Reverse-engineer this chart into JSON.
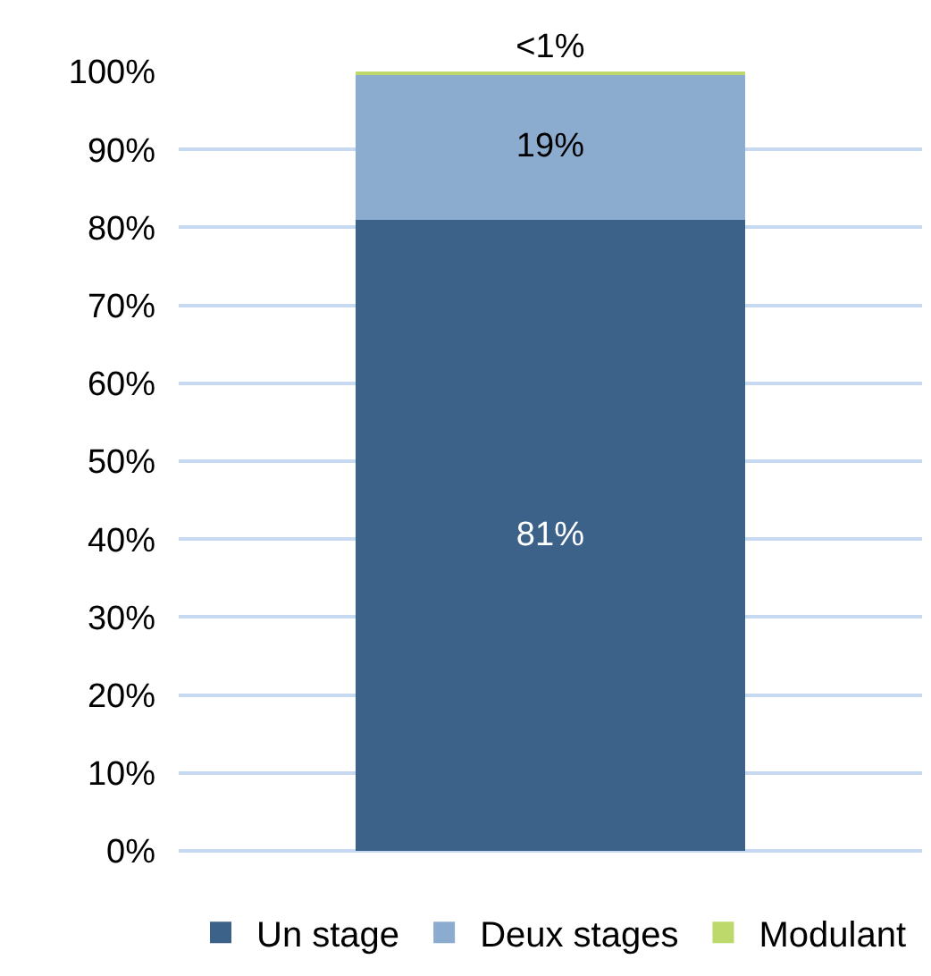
{
  "chart_data": {
    "type": "bar",
    "stacked": true,
    "categories": [
      null
    ],
    "series": [
      {
        "name": "Un stage",
        "color": "#3d6289",
        "values": [
          81
        ],
        "value_labels": [
          "81%"
        ]
      },
      {
        "name": "Deux stages",
        "color": "#8caccf",
        "values": [
          18.7
        ],
        "value_labels": [
          "19%"
        ]
      },
      {
        "name": "Modulant",
        "color": "#bdd96b",
        "values": [
          0.3
        ],
        "value_labels": [
          "<1%"
        ]
      }
    ],
    "ylim": [
      0,
      100
    ],
    "yticks": [
      {
        "value": 0,
        "label": "0%"
      },
      {
        "value": 10,
        "label": "10%"
      },
      {
        "value": 20,
        "label": "20%"
      },
      {
        "value": 30,
        "label": "30%"
      },
      {
        "value": 40,
        "label": "40%"
      },
      {
        "value": 50,
        "label": "50%"
      },
      {
        "value": 60,
        "label": "60%"
      },
      {
        "value": 70,
        "label": "70%"
      },
      {
        "value": 80,
        "label": "80%"
      },
      {
        "value": 90,
        "label": "90%"
      },
      {
        "value": 100,
        "label": "100%"
      }
    ],
    "grid": "y",
    "legend": "bottom"
  }
}
